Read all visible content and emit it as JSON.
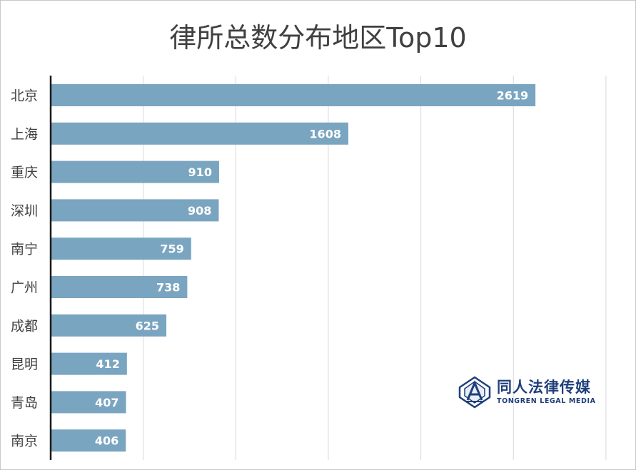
{
  "chart_data": {
    "type": "bar",
    "orientation": "horizontal",
    "title": "律所总数分布地区Top10",
    "categories": [
      "北京",
      "上海",
      "重庆",
      "深圳",
      "南宁",
      "广州",
      "成都",
      "昆明",
      "青岛",
      "南京"
    ],
    "values": [
      2619,
      1608,
      910,
      908,
      759,
      738,
      625,
      412,
      407,
      406
    ],
    "xlim": [
      0,
      3000
    ],
    "grid": true,
    "bar_color": "#7aa5c1",
    "label_color": "#ffffff"
  },
  "logo": {
    "name_cn": "同人法律传媒",
    "name_en": "TONGREN LEGAL MEDIA",
    "color": "#1f3f7a"
  }
}
